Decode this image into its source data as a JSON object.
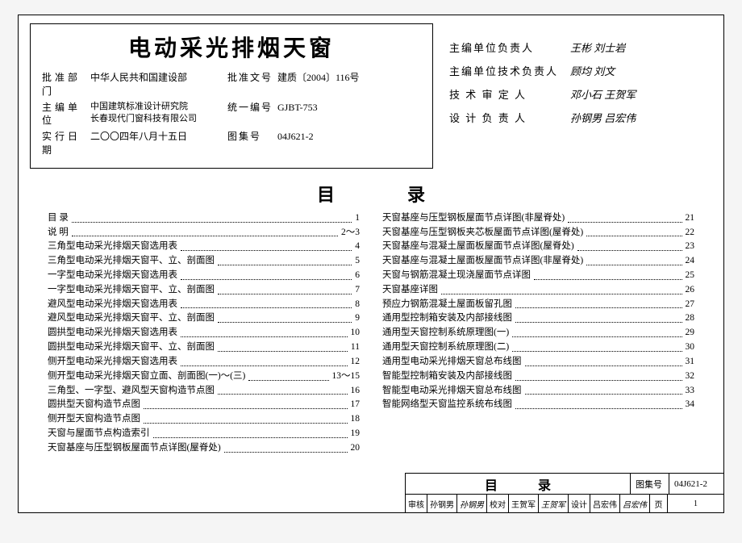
{
  "title": "电动采光排烟天窗",
  "meta": {
    "approve_dept_label": "批准部门",
    "approve_dept": "中华人民共和国建设部",
    "doc_no_label": "批准文号",
    "doc_no": "建质〔2004〕116号",
    "editor_label": "主编单位",
    "editor": "中国建筑标准设计研究院\n长春现代门窗科技有限公司",
    "unified_label": "统一编号",
    "unified": "GJBT-753",
    "effective_label": "实行日期",
    "effective": "二〇〇四年八月十五日",
    "atlas_label": "图集号",
    "atlas": "04J621-2"
  },
  "signers": [
    {
      "label": "主编单位负责人",
      "sig": "王彬 刘士岩"
    },
    {
      "label": "主编单位技术负责人",
      "sig": "顾均 刘文"
    },
    {
      "label": "技 术 审 定 人",
      "sig": "邓小石 王贺军"
    },
    {
      "label": "设 计 负 责 人",
      "sig": "孙钢男 吕宏伟"
    }
  ],
  "toc_heading": "目录",
  "toc_left": [
    {
      "t": "目 录",
      "p": "1"
    },
    {
      "t": "说 明",
      "p": "2～3"
    },
    {
      "t": "三角型电动采光排烟天窗选用表",
      "p": "4"
    },
    {
      "t": "三角型电动采光排烟天窗平、立、剖面图",
      "p": "5"
    },
    {
      "t": "一字型电动采光排烟天窗选用表",
      "p": "6"
    },
    {
      "t": "一字型电动采光排烟天窗平、立、剖面图",
      "p": "7"
    },
    {
      "t": "避风型电动采光排烟天窗选用表",
      "p": "8"
    },
    {
      "t": "避风型电动采光排烟天窗平、立、剖面图",
      "p": "9"
    },
    {
      "t": "圆拱型电动采光排烟天窗选用表",
      "p": "10"
    },
    {
      "t": "圆拱型电动采光排烟天窗平、立、剖面图",
      "p": "11"
    },
    {
      "t": "侧开型电动采光排烟天窗选用表",
      "p": "12"
    },
    {
      "t": "侧开型电动采光排烟天窗立面、剖面图(一)～(三)",
      "p": "13～15"
    },
    {
      "t": "三角型、一字型、避风型天窗构造节点图",
      "p": "16"
    },
    {
      "t": "圆拱型天窗构造节点图",
      "p": "17"
    },
    {
      "t": "侧开型天窗构造节点图",
      "p": "18"
    },
    {
      "t": "天窗与屋面节点构造索引",
      "p": "19"
    },
    {
      "t": "天窗基座与压型钢板屋面节点详图(屋脊处)",
      "p": "20"
    }
  ],
  "toc_right": [
    {
      "t": "天窗基座与压型钢板屋面节点详图(非屋脊处)",
      "p": "21"
    },
    {
      "t": "天窗基座与压型钢板夹芯板屋面节点详图(屋脊处)",
      "p": "22"
    },
    {
      "t": "天窗基座与混凝土屋面板屋面节点详图(屋脊处)",
      "p": "23"
    },
    {
      "t": "天窗基座与混凝土屋面板屋面节点详图(非屋脊处)",
      "p": "24"
    },
    {
      "t": "天窗与钢筋混凝土现浇屋面节点详图",
      "p": "25"
    },
    {
      "t": "天窗基座详图",
      "p": "26"
    },
    {
      "t": "预应力钢筋混凝土屋面板留孔图",
      "p": "27"
    },
    {
      "t": "通用型控制箱安装及内部接线图",
      "p": "28"
    },
    {
      "t": "通用型天窗控制系统原理图(一)",
      "p": "29"
    },
    {
      "t": "通用型天窗控制系统原理图(二)",
      "p": "30"
    },
    {
      "t": "通用型电动采光排烟天窗总布线图",
      "p": "31"
    },
    {
      "t": "智能型控制箱安装及内部接线图",
      "p": "32"
    },
    {
      "t": "智能型电动采光排烟天窗总布线图",
      "p": "33"
    },
    {
      "t": "智能网络型天窗监控系统布线图",
      "p": "34"
    }
  ],
  "footer": {
    "heading": "目录",
    "atlas_label": "图集号",
    "atlas": "04J621-2",
    "review_label": "审核",
    "review_name": "孙钢男",
    "review_sig": "孙钢男",
    "proof_label": "校对",
    "proof_name": "王贺军",
    "proof_sig": "王贺军",
    "design_label": "设计",
    "design_name": "吕宏伟",
    "design_sig": "吕宏伟",
    "page_label": "页",
    "page": "1"
  }
}
